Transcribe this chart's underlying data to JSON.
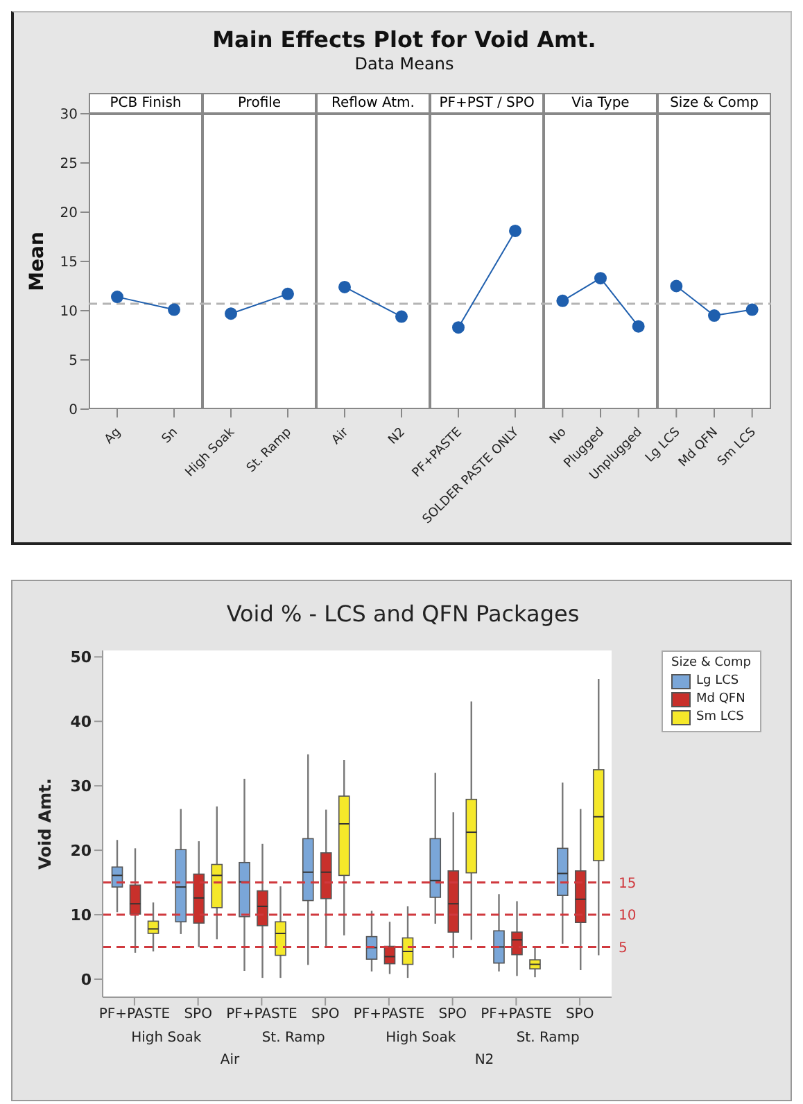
{
  "chart_data": [
    {
      "type": "other",
      "title": "Main Effects Plot for Void Amt.",
      "subtitle": "Data Means"
    },
    {
      "type": "line",
      "title": "PCB Finish",
      "ylabel": "Mean",
      "categories": [
        "Ag",
        "Sn"
      ],
      "values": [
        11.4,
        10.1
      ],
      "color": "#1f5fae",
      "marker": "circle",
      "ylim": [
        0,
        30
      ],
      "yticks": [
        0,
        5,
        10,
        15,
        20,
        25,
        30
      ],
      "ref_lines": [
        {
          "axis": "y",
          "value": 10.7,
          "color": "#b4b4b4",
          "line_style": "dashed"
        }
      ]
    },
    {
      "type": "line",
      "title": "Profile",
      "categories": [
        "High Soak",
        "St. Ramp"
      ],
      "values": [
        9.7,
        11.7
      ],
      "color": "#1f5fae",
      "marker": "circle",
      "ylim": [
        0,
        30
      ],
      "tick_labels": "x",
      "ref_lines": [
        {
          "axis": "y",
          "value": 10.7,
          "color": "#b4b4b4",
          "line_style": "dashed"
        }
      ]
    },
    {
      "type": "line",
      "title": "Reflow Atm.",
      "categories": [
        "Air",
        "N2"
      ],
      "values": [
        12.4,
        9.4
      ],
      "color": "#1f5fae",
      "marker": "circle",
      "ylim": [
        0,
        30
      ],
      "tick_labels": "x",
      "ref_lines": [
        {
          "axis": "y",
          "value": 10.7,
          "color": "#b4b4b4",
          "line_style": "dashed"
        }
      ]
    },
    {
      "type": "line",
      "title": "PF+PST / SPO",
      "categories": [
        "PF+PASTE",
        "SOLDER PASTE ONLY"
      ],
      "values": [
        8.3,
        18.1
      ],
      "color": "#1f5fae",
      "marker": "circle",
      "ylim": [
        0,
        30
      ],
      "tick_labels": "x",
      "ref_lines": [
        {
          "axis": "y",
          "value": 10.7,
          "color": "#b4b4b4",
          "line_style": "dashed"
        }
      ]
    },
    {
      "type": "line",
      "title": "Via Type",
      "categories": [
        "No",
        "Plugged",
        "Unplugged"
      ],
      "values": [
        11.0,
        13.3,
        8.4
      ],
      "color": "#1f5fae",
      "marker": "circle",
      "ylim": [
        0,
        30
      ],
      "tick_labels": "x",
      "ref_lines": [
        {
          "axis": "y",
          "value": 10.7,
          "color": "#b4b4b4",
          "line_style": "dashed"
        }
      ]
    },
    {
      "type": "line",
      "title": "Size & Comp",
      "categories": [
        "Lg LCS",
        "Md QFN",
        "Sm LCS"
      ],
      "values": [
        12.5,
        9.5,
        10.1
      ],
      "color": "#1f5fae",
      "marker": "circle",
      "ylim": [
        0,
        30
      ],
      "tick_labels": "x",
      "ref_lines": [
        {
          "axis": "y",
          "value": 10.7,
          "color": "#b4b4b4",
          "line_style": "dashed"
        }
      ]
    },
    {
      "type": "box",
      "title": "Void % - LCS and QFN Packages",
      "ylabel": "Void Amt.",
      "categories": [
        "PF+PASTE",
        "SPO",
        "PF+PASTE",
        "SPO",
        "PF+PASTE",
        "SPO",
        "PF+PASTE",
        "SPO"
      ],
      "ylim": [
        -2.8,
        51
      ],
      "yticks": [
        0,
        10,
        20,
        30,
        40,
        50
      ],
      "legend": "right",
      "legend_title": "Size & Comp",
      "annotations": [
        "High Soak",
        "St. Ramp",
        "High Soak",
        "St. Ramp",
        "Air",
        "N2"
      ],
      "ref_lines": [
        {
          "axis": "y",
          "value": 5,
          "label": "5",
          "color": "#d0393e",
          "line_style": "dashed"
        },
        {
          "axis": "y",
          "value": 10,
          "label": "10",
          "color": "#d0393e",
          "line_style": "dashed"
        },
        {
          "axis": "y",
          "value": 15,
          "label": "15",
          "color": "#d0393e",
          "line_style": "dashed"
        }
      ],
      "series": [
        {
          "name": "Lg LCS",
          "color": "#7aa6d8",
          "boxes": [
            {
              "low": 10.4,
              "q1": 14.3,
              "median": 16.1,
              "q3": 17.4,
              "high": 21.6
            },
            {
              "low": 7.0,
              "q1": 8.9,
              "median": 14.3,
              "q3": 20.1,
              "high": 26.4
            },
            {
              "low": 1.3,
              "q1": 9.7,
              "median": 15.1,
              "q3": 18.1,
              "high": 31.1
            },
            {
              "low": 2.2,
              "q1": 12.2,
              "median": 16.6,
              "q3": 21.8,
              "high": 34.9
            },
            {
              "low": 1.2,
              "q1": 3.1,
              "median": 4.9,
              "q3": 6.6,
              "high": 10.6
            },
            {
              "low": 8.6,
              "q1": 12.7,
              "median": 15.3,
              "q3": 21.8,
              "high": 32.0
            },
            {
              "low": 1.2,
              "q1": 2.5,
              "median": 5.0,
              "q3": 7.5,
              "high": 13.2
            },
            {
              "low": 5.5,
              "q1": 13.0,
              "median": 16.4,
              "q3": 20.3,
              "high": 30.5
            }
          ]
        },
        {
          "name": "Md QFN",
          "color": "#c8302b",
          "boxes": [
            {
              "low": 4.1,
              "q1": 10.1,
              "median": 11.7,
              "q3": 14.6,
              "high": 20.3
            },
            {
              "low": 5.0,
              "q1": 8.7,
              "median": 12.6,
              "q3": 16.3,
              "high": 21.4
            },
            {
              "low": 0.2,
              "q1": 8.3,
              "median": 11.3,
              "q3": 13.7,
              "high": 21.0
            },
            {
              "low": 5.0,
              "q1": 12.5,
              "median": 16.6,
              "q3": 19.6,
              "high": 26.3
            },
            {
              "low": 0.8,
              "q1": 2.4,
              "median": 3.5,
              "q3": 5.1,
              "high": 8.9
            },
            {
              "low": 3.3,
              "q1": 7.3,
              "median": 11.7,
              "q3": 16.8,
              "high": 25.9
            },
            {
              "low": 0.5,
              "q1": 3.8,
              "median": 6.1,
              "q3": 7.3,
              "high": 12.1
            },
            {
              "low": 1.4,
              "q1": 8.8,
              "median": 12.4,
              "q3": 16.8,
              "high": 26.4
            }
          ]
        },
        {
          "name": "Sm LCS",
          "color": "#f5e82a",
          "boxes": [
            {
              "low": 4.3,
              "q1": 7.1,
              "median": 7.8,
              "q3": 9.0,
              "high": 11.9
            },
            {
              "low": 6.2,
              "q1": 11.1,
              "median": 16.1,
              "q3": 17.8,
              "high": 26.8
            },
            {
              "low": 0.2,
              "q1": 3.7,
              "median": 7.1,
              "q3": 8.9,
              "high": 14.4
            },
            {
              "low": 6.8,
              "q1": 16.1,
              "median": 24.1,
              "q3": 28.4,
              "high": 34.0
            },
            {
              "low": 0.2,
              "q1": 2.3,
              "median": 4.3,
              "q3": 6.4,
              "high": 11.3
            },
            {
              "low": 6.1,
              "q1": 16.5,
              "median": 22.8,
              "q3": 27.9,
              "high": 43.1
            },
            {
              "low": 0.3,
              "q1": 1.6,
              "median": 2.3,
              "q3": 3.0,
              "high": 5.1
            },
            {
              "low": 3.7,
              "q1": 18.4,
              "median": 25.2,
              "q3": 32.5,
              "high": 46.6
            }
          ]
        }
      ]
    }
  ]
}
